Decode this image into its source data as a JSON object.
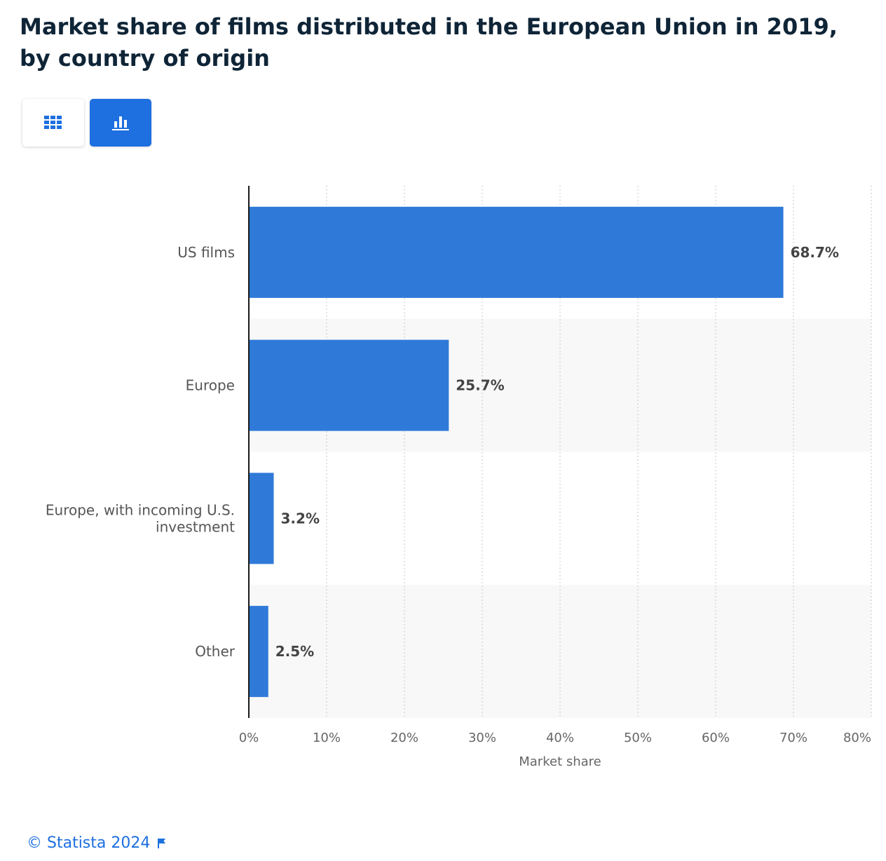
{
  "title": "Market share of films distributed in the European Union in 2019, by country of origin",
  "view_toggle": {
    "table_icon": "grid-icon",
    "chart_icon": "bar-chart-icon",
    "active": "chart"
  },
  "colors": {
    "bar": "#2f7ad9",
    "band": "#f8f8f8",
    "accent": "#1e6fe0",
    "title": "#0f2537"
  },
  "chart_data": {
    "type": "bar",
    "orientation": "horizontal",
    "categories": [
      "US films",
      "Europe",
      "Europe, with incoming U.S. investment",
      "Other"
    ],
    "category_lines": [
      [
        "US films"
      ],
      [
        "Europe"
      ],
      [
        "Europe, with incoming U.S.",
        "investment"
      ],
      [
        "Other"
      ]
    ],
    "values": [
      68.7,
      25.7,
      3.2,
      2.5
    ],
    "value_labels": [
      "68.7%",
      "25.7%",
      "3.2%",
      "2.5%"
    ],
    "xlabel": "Market share",
    "ylabel": "",
    "xlim": [
      0,
      80
    ],
    "xticks": [
      0,
      10,
      20,
      30,
      40,
      50,
      60,
      70,
      80
    ],
    "xtick_labels": [
      "0%",
      "10%",
      "20%",
      "30%",
      "40%",
      "50%",
      "60%",
      "70%",
      "80%"
    ],
    "grid": "vertical dotted",
    "alternating_bands": true
  },
  "footer": {
    "copyright": "© Statista 2024",
    "icon": "flag-icon"
  }
}
